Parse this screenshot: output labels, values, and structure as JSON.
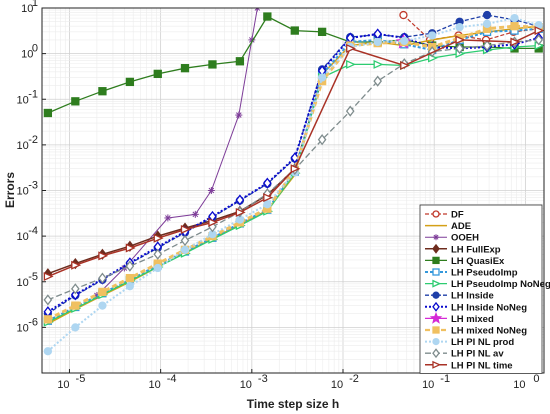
{
  "chart_data": {
    "type": "line",
    "xlabel": "Time step size h",
    "ylabel": "Errors",
    "xscale": "log",
    "yscale": "log",
    "xlim": [
      5e-06,
      1.6
    ],
    "ylim": [
      1e-07,
      10
    ],
    "grid": true,
    "legend_position": "bottom-right",
    "x_ticks": [
      {
        "value": 1e-05,
        "label": "10",
        "exp": "-5"
      },
      {
        "value": 0.0001,
        "label": "10",
        "exp": "-4"
      },
      {
        "value": 0.001,
        "label": "10",
        "exp": "-3"
      },
      {
        "value": 0.01,
        "label": "10",
        "exp": "-2"
      },
      {
        "value": 0.1,
        "label": "10",
        "exp": "-1"
      },
      {
        "value": 1,
        "label": "10",
        "exp": "0"
      }
    ],
    "y_ticks": [
      {
        "value": 1e-06,
        "label": "10",
        "exp": "-6"
      },
      {
        "value": 1e-05,
        "label": "10",
        "exp": "-5"
      },
      {
        "value": 0.0001,
        "label": "10",
        "exp": "-4"
      },
      {
        "value": 0.001,
        "label": "10",
        "exp": "-3"
      },
      {
        "value": 0.01,
        "label": "10",
        "exp": "-2"
      },
      {
        "value": 0.1,
        "label": "10",
        "exp": "-1"
      },
      {
        "value": 1,
        "label": "10",
        "exp": "0"
      },
      {
        "value": 10,
        "label": "10",
        "exp": "1"
      }
    ],
    "series": [
      {
        "name": "DF",
        "color": "#c0392b",
        "dash": "4,2",
        "marker": "circle",
        "fill": false,
        "width": 1.2,
        "x": [
          0.046,
          0.09,
          0.185,
          0.37,
          0.74,
          1.4
        ],
        "y": [
          7.0,
          2.0,
          2.5,
          2.0,
          3.0,
          3.5
        ]
      },
      {
        "name": "ADE",
        "color": "#d4a017",
        "dash": "",
        "marker": "none",
        "fill": false,
        "width": 1.5,
        "x": [
          5.8e-06,
          1.16e-05,
          2.3e-05,
          4.6e-05,
          9.3e-05,
          0.000185,
          0.00037,
          0.00074,
          0.00148,
          0.00296,
          0.0059,
          0.012,
          0.024,
          0.047,
          0.095,
          0.19,
          0.38,
          0.76,
          1.4
        ],
        "y": [
          1.2e-06,
          2.5e-06,
          5e-06,
          1e-05,
          2.1e-05,
          4.3e-05,
          8.8e-05,
          0.00018,
          0.00037,
          0.0022,
          0.35,
          1.5,
          1.8,
          1.5,
          2.0,
          2.5,
          3.0,
          3.5,
          4.0
        ]
      },
      {
        "name": "OOEH",
        "color": "#7d3c98",
        "dash": "",
        "marker": "asterisk",
        "fill": false,
        "width": 1.0,
        "x": [
          2e-05,
          4e-05,
          0.00012,
          0.00024,
          0.00036,
          0.00072,
          0.001,
          0.00115
        ],
        "y": [
          5e-06,
          2e-05,
          0.00025,
          0.0003,
          0.001,
          0.045,
          2.0,
          10
        ]
      },
      {
        "name": "LH FullExp",
        "color": "#6e2c1e",
        "dash": "",
        "marker": "diamond",
        "fill": true,
        "width": 1.5,
        "x": [
          5.8e-06,
          1.16e-05,
          2.3e-05,
          4.6e-05,
          9.3e-05,
          0.000185,
          0.00037,
          0.00074,
          0.00148,
          0.00296,
          0.0059
        ],
        "y": [
          1.5e-05,
          2.5e-05,
          4e-05,
          6e-05,
          0.0001,
          0.00015,
          0.00022,
          0.00035,
          0.0008,
          0.003,
          0.28
        ]
      },
      {
        "name": "LH QuasiEx",
        "color": "#2e7d1e",
        "dash": "",
        "marker": "square",
        "fill": true,
        "width": 1.3,
        "x": [
          5.8e-06,
          1.16e-05,
          2.3e-05,
          4.6e-05,
          9.3e-05,
          0.000185,
          0.00037,
          0.00074,
          0.00148,
          0.00296,
          0.0059,
          0.012,
          0.024,
          0.047,
          0.095,
          0.19,
          0.38,
          0.76,
          1.4
        ],
        "y": [
          0.05,
          0.09,
          0.15,
          0.24,
          0.36,
          0.48,
          0.58,
          0.68,
          6.5,
          3.2,
          3.0,
          1.8,
          1.8,
          2.0,
          1.5,
          1.4,
          1.4,
          1.3,
          1.3
        ]
      },
      {
        "name": "LH PseudoImp",
        "color": "#3498db",
        "dash": "3,2",
        "marker": "square",
        "fill": false,
        "width": 2.0,
        "x": [
          5.8e-06,
          1.16e-05,
          2.3e-05,
          4.6e-05,
          9.3e-05,
          0.000185,
          0.00037,
          0.00074,
          0.00148,
          0.00296,
          0.0059,
          0.012,
          0.024,
          0.047,
          0.095,
          0.19,
          0.38,
          0.76,
          1.4
        ],
        "y": [
          1.4e-06,
          2.8e-06,
          5.6e-06,
          1.1e-05,
          2.3e-05,
          4.6e-05,
          9.2e-05,
          0.00019,
          0.00038,
          0.0026,
          0.35,
          1.8,
          2.0,
          1.6,
          1.2,
          2.0,
          3.0,
          3.2,
          3.5
        ]
      },
      {
        "name": "LH PseudoImp NoNeg",
        "color": "#2ecc71",
        "dash": "",
        "marker": "triangle-right",
        "fill": false,
        "width": 1.3,
        "x": [
          5.8e-06,
          1.16e-05,
          2.3e-05,
          4.6e-05,
          9.3e-05,
          0.000185,
          0.00037,
          0.00074,
          0.00148,
          0.00296,
          0.0059,
          0.012,
          0.024,
          0.047,
          0.095,
          0.19,
          0.38,
          0.76,
          1.4
        ],
        "y": [
          1.3e-06,
          2.6e-06,
          5.2e-06,
          1.05e-05,
          2.1e-05,
          4.2e-05,
          8.5e-05,
          0.00017,
          0.00035,
          0.0024,
          0.3,
          0.58,
          0.58,
          0.55,
          0.8,
          1.0,
          1.2,
          1.4,
          1.5
        ]
      },
      {
        "name": "LH Inside",
        "color": "#1f3fa8",
        "dash": "4,2",
        "marker": "circle",
        "fill": true,
        "width": 1.3,
        "x": [
          5.8e-06,
          1.16e-05,
          2.3e-05,
          4.6e-05,
          9.3e-05,
          0.000185,
          0.00037,
          0.00074,
          0.00148,
          0.00296,
          0.0059,
          0.012,
          0.024,
          0.047,
          0.095,
          0.19,
          0.38,
          0.76,
          1.4
        ],
        "y": [
          2e-06,
          5e-06,
          1.1e-05,
          2.5e-05,
          5.5e-05,
          0.00012,
          0.00026,
          0.0006,
          0.0014,
          0.005,
          0.45,
          2.3,
          2.6,
          2.3,
          2.8,
          5.0,
          7.0,
          5.5,
          4.0
        ]
      },
      {
        "name": "LH Inside NoNeg",
        "color": "#0a0acd",
        "dash": "2,2",
        "marker": "diamond",
        "fill": false,
        "width": 2.0,
        "x": [
          5.8e-06,
          1.16e-05,
          2.3e-05,
          4.6e-05,
          9.3e-05,
          0.000185,
          0.00037,
          0.00074,
          0.00148,
          0.00296,
          0.0059,
          0.012,
          0.024,
          0.047,
          0.095,
          0.19,
          0.38,
          0.76,
          1.4
        ],
        "y": [
          2.2e-06,
          5.2e-06,
          1.15e-05,
          2.6e-05,
          5.8e-05,
          0.000125,
          0.00027,
          0.00062,
          0.00145,
          0.0052,
          0.42,
          2.2,
          2.7,
          2.2,
          1.4,
          1.3,
          1.4,
          1.6,
          2.2
        ]
      },
      {
        "name": "LH mixed",
        "color": "#d62ad6",
        "dash": "",
        "marker": "star",
        "fill": true,
        "width": 1.3,
        "x": [
          0.046
        ],
        "y": [
          1.8
        ]
      },
      {
        "name": "LH mixed NoNeg",
        "color": "#f0c060",
        "dash": "5,3",
        "marker": "square",
        "fill": true,
        "width": 3.0,
        "x": [
          5.8e-06,
          1.16e-05,
          2.3e-05,
          4.6e-05,
          9.3e-05,
          0.000185,
          0.00037,
          0.00074,
          0.00148,
          0.00296,
          0.0059,
          0.012,
          0.024,
          0.047,
          0.095,
          0.19,
          0.38,
          0.76,
          1.4
        ],
        "y": [
          1.5e-06,
          3e-06,
          6e-06,
          1.2e-05,
          2.5e-05,
          5e-05,
          0.0001,
          0.0002,
          0.0004,
          0.0028,
          0.25,
          1.5,
          1.7,
          1.8,
          1.4,
          2.2,
          3.5,
          4.0,
          3.8
        ]
      },
      {
        "name": "LH PI NL prod",
        "color": "#aed6f1",
        "dash": "2,2",
        "marker": "circle",
        "fill": true,
        "width": 2.0,
        "x": [
          5.8e-06,
          1.16e-05,
          2.3e-05,
          4.6e-05,
          9.3e-05,
          0.000185,
          0.00037,
          0.00074,
          0.00148,
          0.00296,
          0.0059,
          0.012,
          0.024,
          0.047,
          0.095,
          0.19,
          0.38,
          0.76,
          1.4
        ],
        "y": [
          3e-07,
          1e-06,
          3e-06,
          8e-06,
          2e-05,
          5e-05,
          0.00011,
          0.00023,
          0.0005,
          0.0025,
          0.3,
          1.4,
          1.8,
          1.9,
          2.5,
          3.8,
          4.5,
          6.0,
          4.2
        ]
      },
      {
        "name": "LH PI NL av",
        "color": "#7f8c8d",
        "dash": "6,3",
        "marker": "diamond",
        "fill": false,
        "width": 1.3,
        "x": [
          5.8e-06,
          1.16e-05,
          2.3e-05,
          4.6e-05,
          9.3e-05,
          0.000185,
          0.00037,
          0.00074,
          0.00148,
          0.00296,
          0.0059,
          0.012,
          0.024,
          0.047,
          0.095,
          0.19,
          0.38,
          0.76,
          1.4
        ],
        "y": [
          4e-06,
          7e-06,
          1.2e-05,
          2.2e-05,
          4e-05,
          8e-05,
          0.00016,
          0.00034,
          0.00085,
          0.0029,
          0.013,
          0.055,
          0.25,
          0.6,
          1.1,
          1.3,
          1.5,
          1.8,
          2.0
        ]
      },
      {
        "name": "LH PI NL time",
        "color": "#a93226",
        "dash": "",
        "marker": "triangle-right",
        "fill": false,
        "width": 1.5,
        "x": [
          5.8e-06,
          1.16e-05,
          2.3e-05,
          4.6e-05,
          9.3e-05,
          0.000185,
          0.00037,
          0.00074,
          0.00148,
          0.00296,
          0.012,
          0.047,
          0.19,
          0.76,
          1.4
        ],
        "y": [
          1.3e-05,
          2.3e-05,
          3.7e-05,
          5.5e-05,
          9e-05,
          0.00014,
          0.0002,
          0.00033,
          0.0007,
          0.003,
          1.3,
          0.55,
          2.0,
          1.8,
          3.2
        ]
      }
    ]
  }
}
